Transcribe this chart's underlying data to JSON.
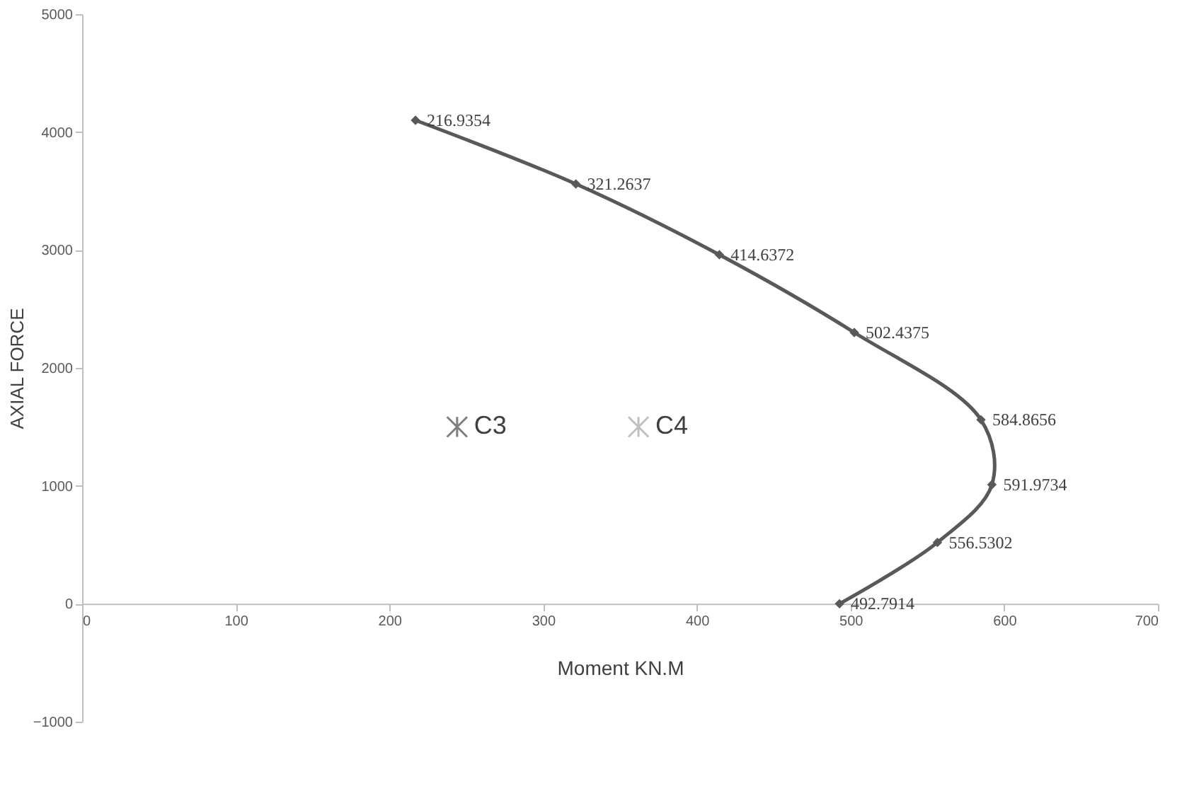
{
  "chart_data": {
    "type": "line",
    "xlabel": "Moment KN.M",
    "ylabel": "AXIAL FORCE",
    "xlim": [
      0,
      700
    ],
    "xticks": [
      0,
      100,
      200,
      300,
      400,
      500,
      600,
      700
    ],
    "ylim": [
      -1000,
      5000
    ],
    "yticks": [
      -1000,
      0,
      1000,
      2000,
      3000,
      4000,
      5000
    ],
    "grid": false,
    "legend": false,
    "marker": "diamond",
    "line_style": "solid",
    "annotations": [
      {
        "text": "216.9354",
        "x": 216.9354,
        "y": 4100
      },
      {
        "text": "321.2637",
        "x": 321.2637,
        "y": 3560
      },
      {
        "text": "414.6372",
        "x": 414.6372,
        "y": 2960
      },
      {
        "text": "502.4375",
        "x": 502.4375,
        "y": 2300
      },
      {
        "text": "584.8656",
        "x": 584.8656,
        "y": 1560
      },
      {
        "text": "591.9734",
        "x": 591.9734,
        "y": 1010
      },
      {
        "text": "556.5302",
        "x": 556.5302,
        "y": 520
      },
      {
        "text": "492.7914",
        "x": 492.7914,
        "y": 0
      }
    ],
    "series": [
      {
        "color": "#595959",
        "x": [
          216.9354,
          321.2637,
          414.6372,
          502.4375,
          584.8656,
          591.9734,
          556.5302,
          492.7914
        ],
        "values": [
          4100,
          3560,
          2960,
          2300,
          1560,
          1010,
          520,
          0
        ]
      },
      {
        "type": "scatter",
        "name": "C3",
        "color": "#7f7f7f",
        "marker": "cross",
        "x": [
          244
        ],
        "values": [
          1500
        ]
      },
      {
        "type": "scatter",
        "name": "C4",
        "color": "#c0c0c0",
        "marker": "cross",
        "x": [
          362
        ],
        "values": [
          1500
        ]
      }
    ]
  }
}
